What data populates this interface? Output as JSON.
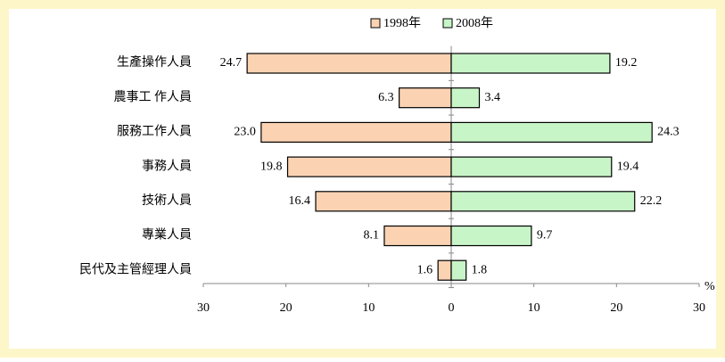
{
  "chart_data": {
    "type": "butterfly-bar",
    "categories": [
      "生產操作人員",
      "農事工 作人員",
      "服務工作人員",
      "事務人員",
      "技術人員",
      "專業人員",
      "民代及主管經理人員"
    ],
    "series": [
      {
        "name": "1998年",
        "color": "#fbd3b3",
        "values": [
          -24.7,
          -6.3,
          -23.0,
          -19.8,
          -16.4,
          -8.1,
          -1.6
        ],
        "value_labels": [
          "24.7",
          "6.3",
          "23.0",
          "19.8",
          "16.4",
          "8.1",
          "1.6"
        ]
      },
      {
        "name": "2008年",
        "color": "#c8f5c8",
        "values": [
          19.2,
          3.4,
          24.3,
          19.4,
          22.2,
          9.7,
          1.8
        ],
        "value_labels": [
          "19.2",
          "3.4",
          "24.3",
          "19.4",
          "22.2",
          "9.7",
          "1.8"
        ]
      }
    ],
    "xlim": [
      -30,
      30
    ],
    "xticks": [
      {
        "value": -30,
        "label": "30"
      },
      {
        "value": -20,
        "label": "20"
      },
      {
        "value": -10,
        "label": "10"
      },
      0,
      10,
      20,
      30
    ],
    "x_unit": "%",
    "legend": "top"
  }
}
